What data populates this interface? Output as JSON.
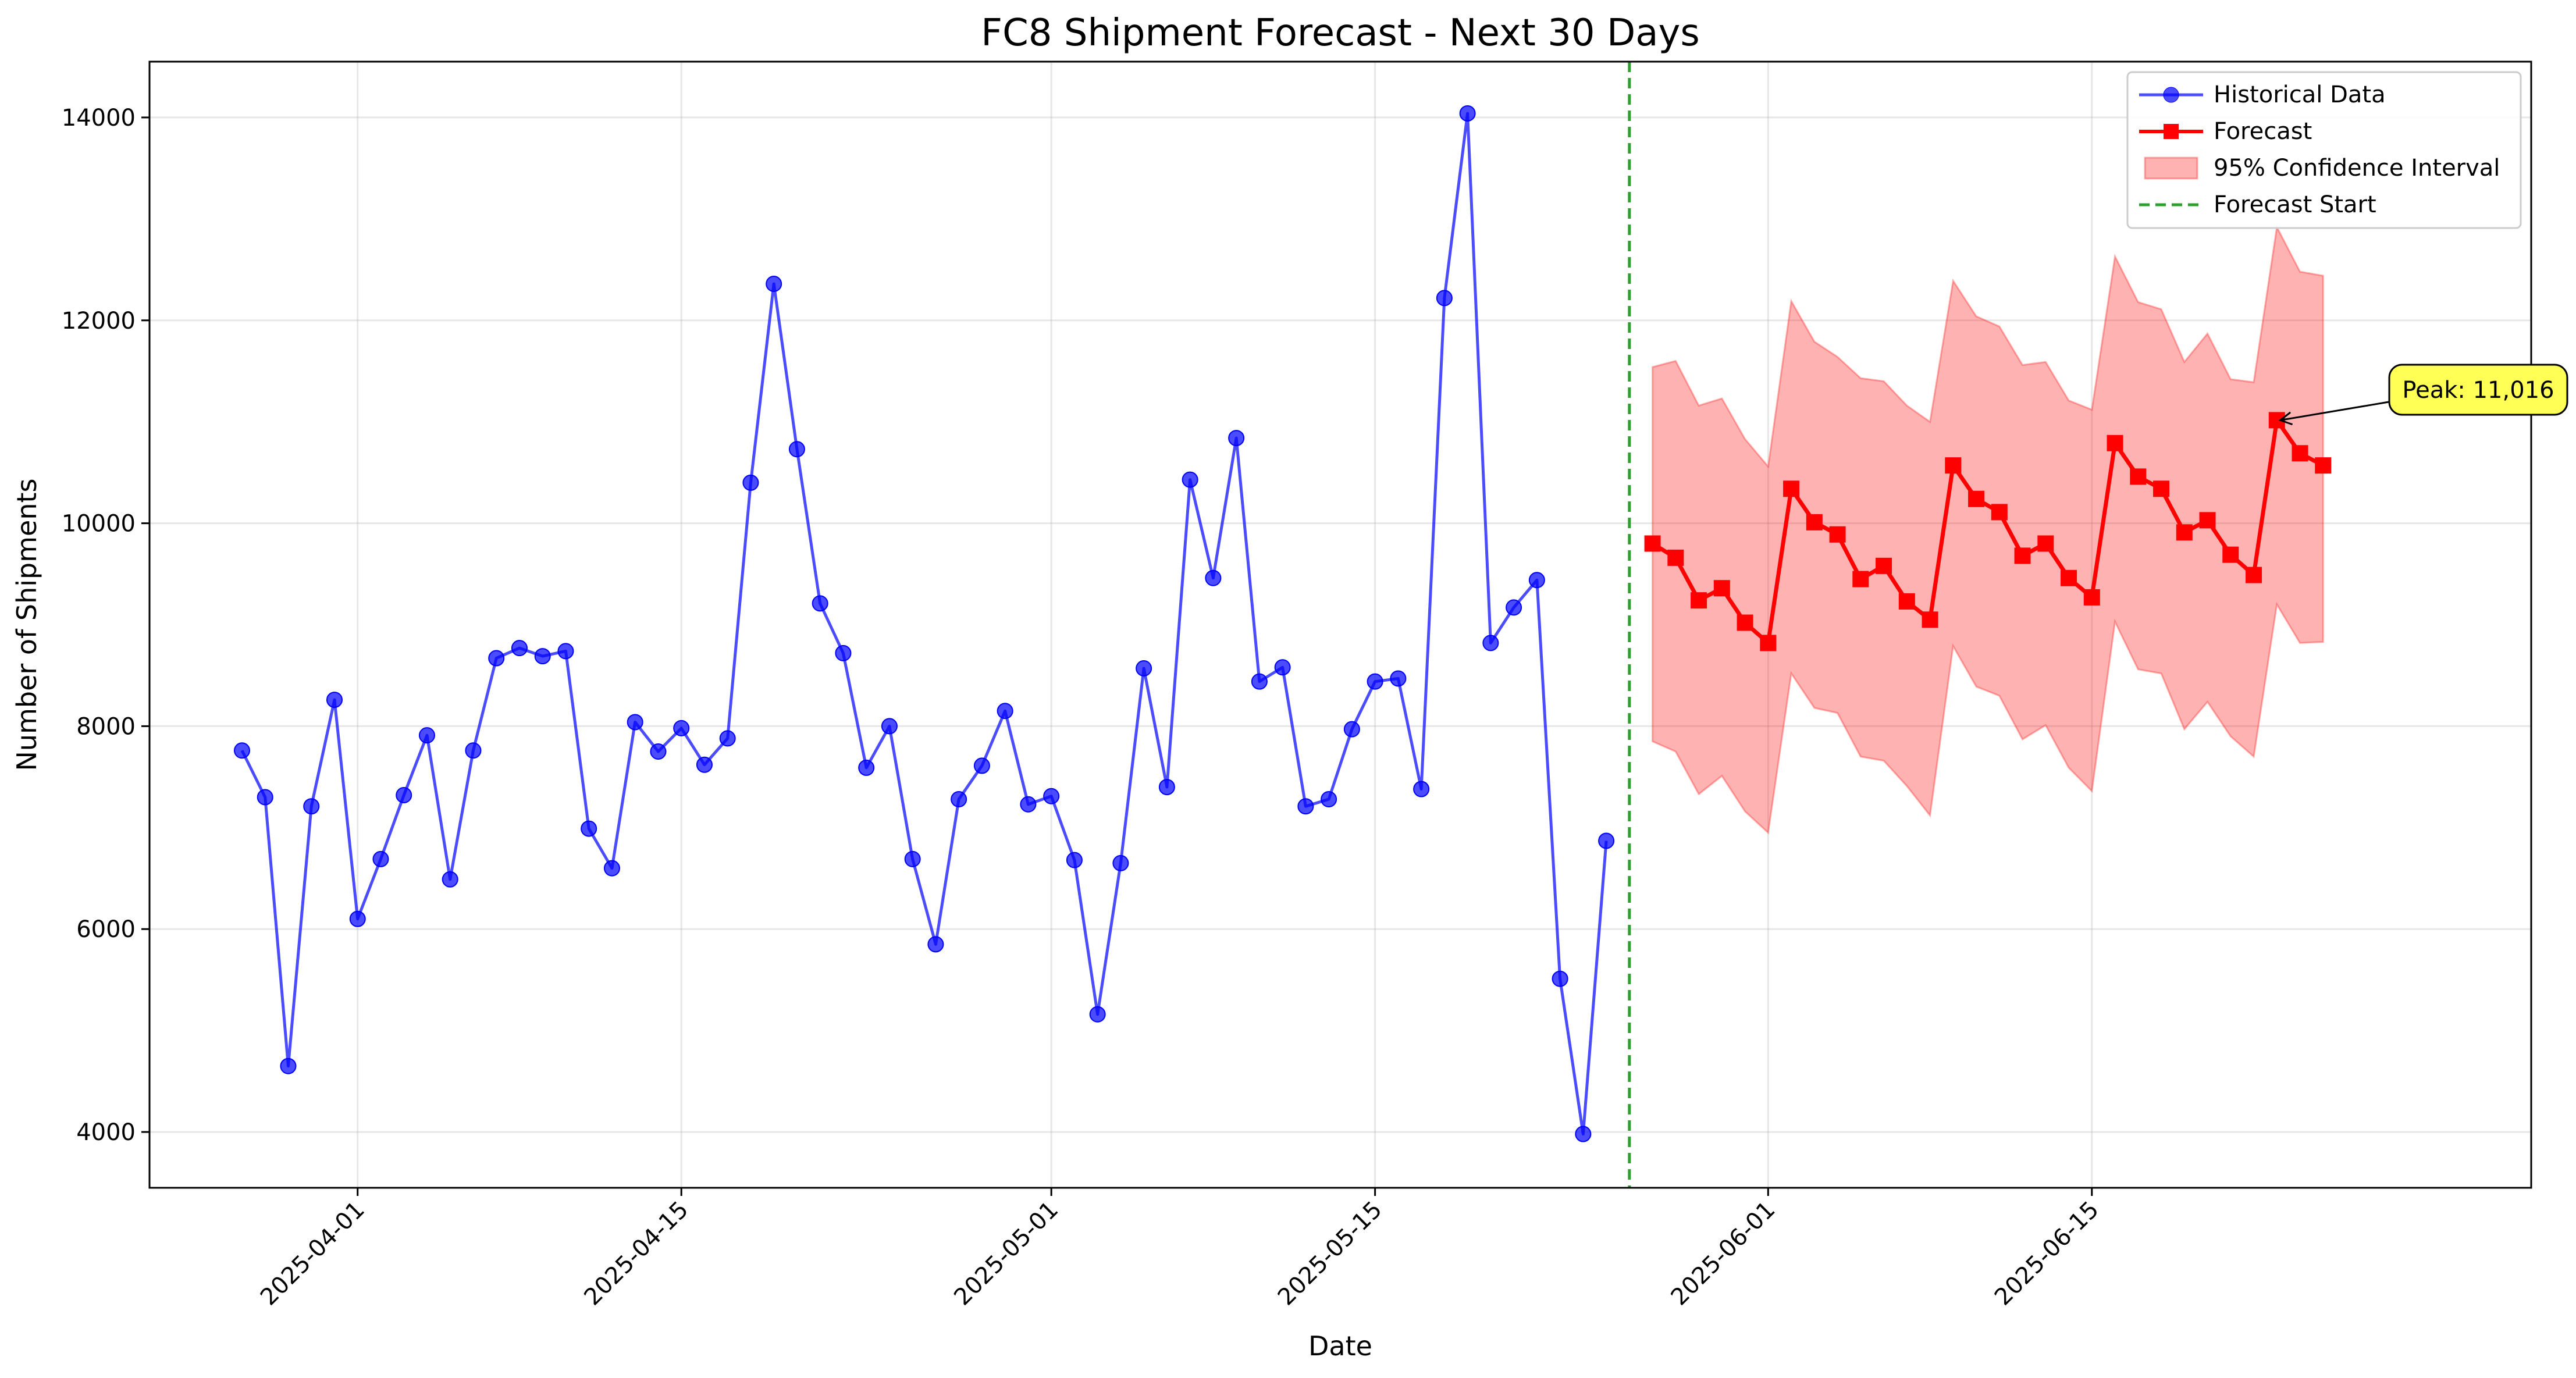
{
  "chart_data": {
    "type": "line",
    "title": "FC8 Shipment Forecast - Next 30 Days",
    "xlabel": "Date",
    "ylabel": "Number of Shipments",
    "x_range": [
      "2025-03-23",
      "2025-07-04"
    ],
    "y_range": [
      3450,
      14550
    ],
    "grid": true,
    "legend_position": "top-right",
    "x_ticks": [
      "2025-04-01",
      "2025-04-15",
      "2025-05-01",
      "2025-05-15",
      "2025-06-01",
      "2025-06-15"
    ],
    "y_ticks": [
      4000,
      6000,
      8000,
      10000,
      12000,
      14000
    ],
    "forecast_start": "2025-05-26",
    "series": [
      {
        "name": "Historical Data",
        "color": "#0000ff",
        "marker": "circle",
        "start_date": "2025-03-27",
        "values": [
          7760,
          7300,
          4650,
          7210,
          8260,
          6100,
          6690,
          7320,
          7910,
          6490,
          7760,
          8670,
          8770,
          8690,
          8740,
          6990,
          6600,
          8040,
          7750,
          7980,
          7620,
          7880,
          10400,
          12360,
          10730,
          9210,
          8720,
          7590,
          8000,
          6690,
          5850,
          7280,
          7610,
          8150,
          7230,
          7310,
          6680,
          5160,
          6650,
          8570,
          7400,
          10430,
          9460,
          10840,
          8440,
          8580,
          7210,
          7280,
          7970,
          8440,
          8470,
          7380,
          12220,
          14040,
          8820,
          9170,
          9440,
          5510,
          3980,
          6870
        ]
      },
      {
        "name": "Forecast",
        "color": "#ff0000",
        "marker": "square",
        "start_date": "2025-05-27",
        "values": [
          9800,
          9660,
          9240,
          9360,
          9020,
          8820,
          10340,
          10010,
          9890,
          9450,
          9580,
          9230,
          9050,
          10570,
          10240,
          10110,
          9680,
          9800,
          9460,
          9270,
          10790,
          10460,
          10340,
          9910,
          10030,
          9690,
          9490,
          11016,
          10690,
          10570
        ]
      }
    ],
    "confidence_interval": {
      "name": "95% Confidence Interval",
      "color": "#ff0000",
      "start_date": "2025-05-27",
      "upper": [
        11540,
        11600,
        11160,
        11230,
        10830,
        10560,
        12190,
        11790,
        11640,
        11430,
        11400,
        11160,
        11000,
        12390,
        12040,
        11940,
        11560,
        11590,
        11210,
        11120,
        12630,
        12180,
        12110,
        11590,
        11870,
        11420,
        11390,
        12920,
        12480,
        12440
      ],
      "lower": [
        7850,
        7750,
        7330,
        7510,
        7160,
        6950,
        8520,
        8180,
        8130,
        7700,
        7660,
        7410,
        7120,
        8790,
        8390,
        8300,
        7870,
        8010,
        7590,
        7360,
        9030,
        8560,
        8520,
        7970,
        8240,
        7900,
        7700,
        9200,
        8820,
        8830
      ]
    },
    "forecast_start_line": {
      "name": "Forecast Start",
      "color": "#2ca02c",
      "style": "dashed"
    },
    "annotation": {
      "text": "Peak: 11,016",
      "date": "2025-06-23",
      "value": 11016,
      "background": "#ffff55"
    }
  }
}
